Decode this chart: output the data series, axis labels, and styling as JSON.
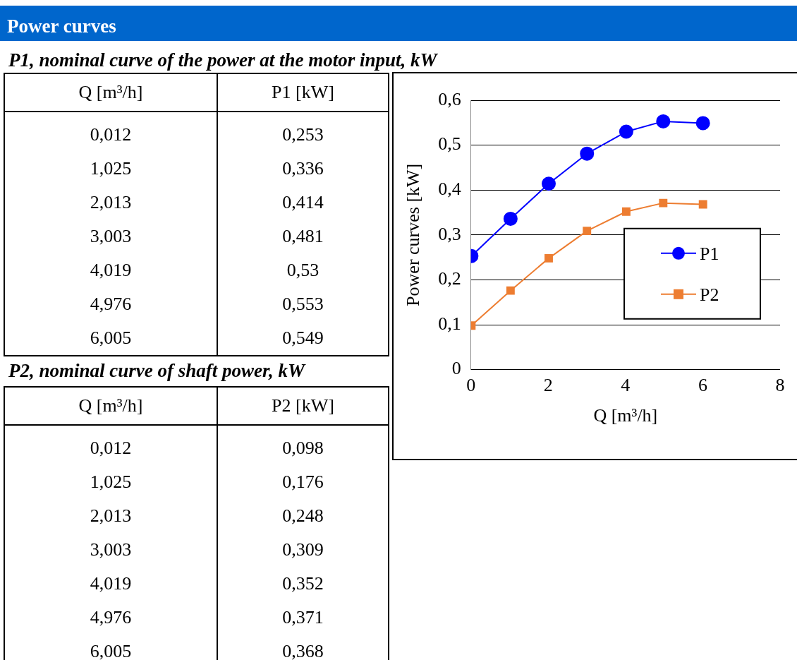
{
  "chart_data": [
    {
      "type": "other",
      "title": "Power curves",
      "subtitle": "P1, nominal curve of the power at the motor input, kW",
      "annotations": [
        "Q [m³/h]",
        "P1 [kW]",
        "0,012",
        "0,253",
        "1,025",
        "0,336",
        "2,013",
        "0,414",
        "3,003",
        "0,481",
        "4,019",
        "0,53",
        "4,976",
        "0,553",
        "6,005",
        "0,549"
      ]
    },
    {
      "type": "other",
      "subtitle": "P2, nominal curve of shaft power, kW",
      "annotations": [
        "Q [m³/h]",
        "P2 [kW]",
        "0,012",
        "0,098",
        "1,025",
        "0,176",
        "2,013",
        "0,248",
        "3,003",
        "0,309",
        "4,019",
        "0,352",
        "4,976",
        "0,371",
        "6,005",
        "0,368"
      ]
    },
    {
      "type": "line",
      "xlabel": "Q [m³/h]",
      "ylabel": "Power curves [kW]",
      "series": [
        {
          "name": "P1",
          "color": "#0000ff",
          "marker": "circle",
          "x": [
            0.012,
            1.025,
            2.013,
            3.003,
            4.019,
            4.976,
            6.005
          ],
          "values": [
            0.253,
            0.336,
            0.414,
            0.481,
            0.53,
            0.553,
            0.549
          ]
        },
        {
          "name": "P2",
          "color": "#ed7d31",
          "marker": "square",
          "x": [
            0.012,
            1.025,
            2.013,
            3.003,
            4.019,
            4.976,
            6.005
          ],
          "values": [
            0.098,
            0.176,
            0.248,
            0.309,
            0.352,
            0.371,
            0.368
          ]
        }
      ],
      "xlim": [
        0,
        8
      ],
      "xticks": [
        0,
        2,
        4,
        6,
        8
      ],
      "ylim": [
        0,
        0.6
      ],
      "yticks": [
        0,
        {
          "value": 0.1,
          "label": "0,1"
        },
        {
          "value": 0.2,
          "label": "0,2"
        },
        {
          "value": 0.3,
          "label": "0,3"
        },
        {
          "value": 0.4,
          "label": "0,4"
        },
        {
          "value": 0.5,
          "label": "0,5"
        },
        {
          "value": 0.6,
          "label": "0,6"
        }
      ],
      "grid": "y",
      "legend": "right"
    }
  ]
}
